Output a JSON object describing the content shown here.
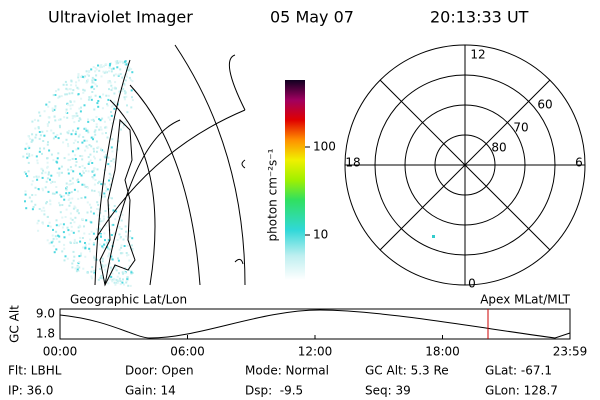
{
  "header": {
    "title": "Ultraviolet Imager",
    "date": "05 May 07",
    "time": "20:13:33 UT"
  },
  "colorbar": {
    "label": "photon cm⁻²s⁻¹",
    "ticks": [
      "100",
      "10"
    ]
  },
  "image_caption": "Geographic Lat/Lon",
  "polar": {
    "caption": "Apex MLat/MLT",
    "mlt_labels": {
      "top": "12",
      "left": "18",
      "right": "6",
      "bottom": "0"
    },
    "lat_labels": [
      "60",
      "70",
      "80"
    ]
  },
  "orbit": {
    "axis_label": "GC Alt",
    "y_labels": [
      "9.0",
      "1.8"
    ],
    "x_labels": [
      "00:00",
      "06:00",
      "12:00",
      "18:00",
      "23:59"
    ]
  },
  "footer": {
    "rows": [
      [
        "Flt: LBHL",
        "Door: Open",
        "Mode: Normal",
        "GC Alt: 5.3 Re",
        "GLat: -67.1"
      ],
      [
        "IP: 36.0",
        "Gain: 14",
        "Dsp:  -9.5",
        "Seq: 39",
        "GLon: 128.7"
      ]
    ]
  }
}
